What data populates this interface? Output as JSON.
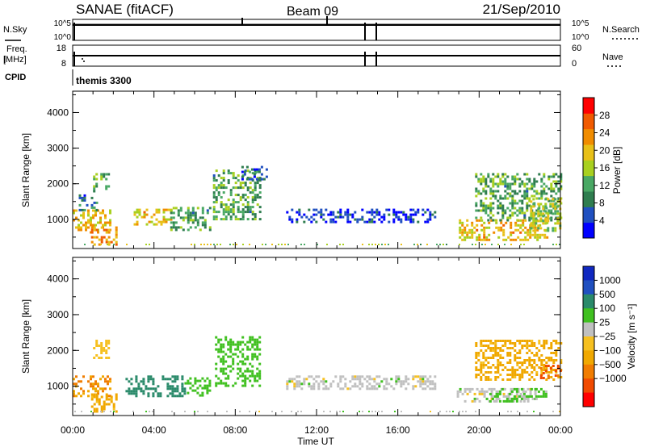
{
  "header": {
    "station": "SANAE (fitACF)",
    "beam": "Beam 09",
    "date": "21/Sep/2010"
  },
  "param_panels": {
    "nsky_label": "N.Sky",
    "nsearch_label": "N.Search",
    "noise_ticks_left": [
      "10^5",
      "10^0"
    ],
    "noise_ticks_right": [
      "10^5",
      "10^0"
    ],
    "freq_label_top": "Freq.",
    "freq_label_bottom": "[MHz]",
    "freq_ticks": [
      "18",
      "8"
    ],
    "nave_label": "Nave",
    "nave_ticks": [
      "60",
      "0"
    ],
    "cpid_label": "CPID",
    "cpid_text": "themis 3300"
  },
  "colors": {
    "power_scale": [
      "#0000ff",
      "#2050c0",
      "#2f7d4f",
      "#49a864",
      "#a8d020",
      "#e8c018",
      "#f08c00",
      "#f05a00",
      "#ff0000"
    ],
    "velocity_scale": [
      "#ff0000",
      "#f04a00",
      "#f07c00",
      "#f0a800",
      "#f6c020",
      "#c0c0c0",
      "#40c020",
      "#2a8a6a",
      "#2050c0",
      "#1028c0"
    ],
    "axis": "#000000",
    "background": "#ffffff"
  },
  "chart_data": [
    {
      "type": "heatmap",
      "panel": "power",
      "ylabel": "Slant Range [km]",
      "y_ticks": [
        "1000",
        "2000",
        "3000",
        "4000"
      ],
      "ylim": [
        180,
        4600
      ],
      "xlim": [
        0,
        24
      ],
      "colorbar_label": "Power [dB]",
      "colorbar_ticks": [
        "4",
        "8",
        "12",
        "16",
        "20",
        "24",
        "28"
      ],
      "colorbar_range": [
        0,
        32
      ],
      "regions": [
        {
          "t0": 0.0,
          "t1": 1.9,
          "r0": 650,
          "r1": 1280,
          "value": 20
        },
        {
          "t0": 0.3,
          "t1": 1.2,
          "r0": 1250,
          "r1": 1700,
          "value": 8
        },
        {
          "t0": 0.9,
          "t1": 2.1,
          "r0": 300,
          "r1": 800,
          "value": 24
        },
        {
          "t0": 1.0,
          "t1": 1.8,
          "r0": 1800,
          "r1": 2300,
          "value": 12
        },
        {
          "t0": 3.0,
          "t1": 4.8,
          "r0": 850,
          "r1": 1300,
          "value": 20
        },
        {
          "t0": 4.8,
          "t1": 6.8,
          "r0": 700,
          "r1": 1350,
          "value": 12
        },
        {
          "t0": 6.9,
          "t1": 9.2,
          "r0": 1000,
          "r1": 2400,
          "value": 12
        },
        {
          "t0": 8.3,
          "t1": 9.6,
          "r0": 2100,
          "r1": 2500,
          "value": 8
        },
        {
          "t0": 10.5,
          "t1": 17.8,
          "r0": 900,
          "r1": 1300,
          "value": 4
        },
        {
          "t0": 19.0,
          "t1": 23.3,
          "r0": 400,
          "r1": 1000,
          "value": 20
        },
        {
          "t0": 19.8,
          "t1": 24.0,
          "r0": 1000,
          "r1": 2300,
          "value": 12
        },
        {
          "t0": 22.5,
          "t1": 24.0,
          "r0": 700,
          "r1": 1600,
          "value": 16
        }
      ]
    },
    {
      "type": "heatmap",
      "panel": "velocity",
      "ylabel": "Slant Range [km]",
      "y_ticks": [
        "1000",
        "2000",
        "3000",
        "4000"
      ],
      "ylim": [
        180,
        4600
      ],
      "xlim": [
        0,
        24
      ],
      "xlabel": "Time UT",
      "x_ticks": [
        "00:00",
        "04:00",
        "08:00",
        "12:00",
        "16:00",
        "20:00",
        "00:00"
      ],
      "colorbar_label": "Velocity [m s⁻¹]",
      "colorbar_ticks": [
        "1000",
        "500",
        "100",
        "25",
        "−25",
        "−100",
        "−500",
        "−1000"
      ],
      "regions": [
        {
          "t0": 0.0,
          "t1": 1.8,
          "r0": 700,
          "r1": 1300,
          "value": -300
        },
        {
          "t0": 0.9,
          "t1": 2.1,
          "r0": 300,
          "r1": 800,
          "value": -150
        },
        {
          "t0": 1.0,
          "t1": 1.8,
          "r0": 1800,
          "r1": 2300,
          "value": -60
        },
        {
          "t0": 2.6,
          "t1": 5.5,
          "r0": 750,
          "r1": 1300,
          "value": 200
        },
        {
          "t0": 5.5,
          "t1": 6.8,
          "r0": 750,
          "r1": 1250,
          "value": 60
        },
        {
          "t0": 7.0,
          "t1": 9.2,
          "r0": 1000,
          "r1": 2400,
          "value": 60
        },
        {
          "t0": 10.5,
          "t1": 17.8,
          "r0": 900,
          "r1": 1300,
          "value": 0
        },
        {
          "t0": 18.9,
          "t1": 22.8,
          "r0": 600,
          "r1": 950,
          "value": 0
        },
        {
          "t0": 20.5,
          "t1": 23.3,
          "r0": 600,
          "r1": 950,
          "value": 40
        },
        {
          "t0": 19.8,
          "t1": 24.0,
          "r0": 1200,
          "r1": 2300,
          "value": -150
        },
        {
          "t0": 23.0,
          "t1": 24.0,
          "r0": 1200,
          "r1": 1600,
          "value": -700
        }
      ]
    }
  ]
}
